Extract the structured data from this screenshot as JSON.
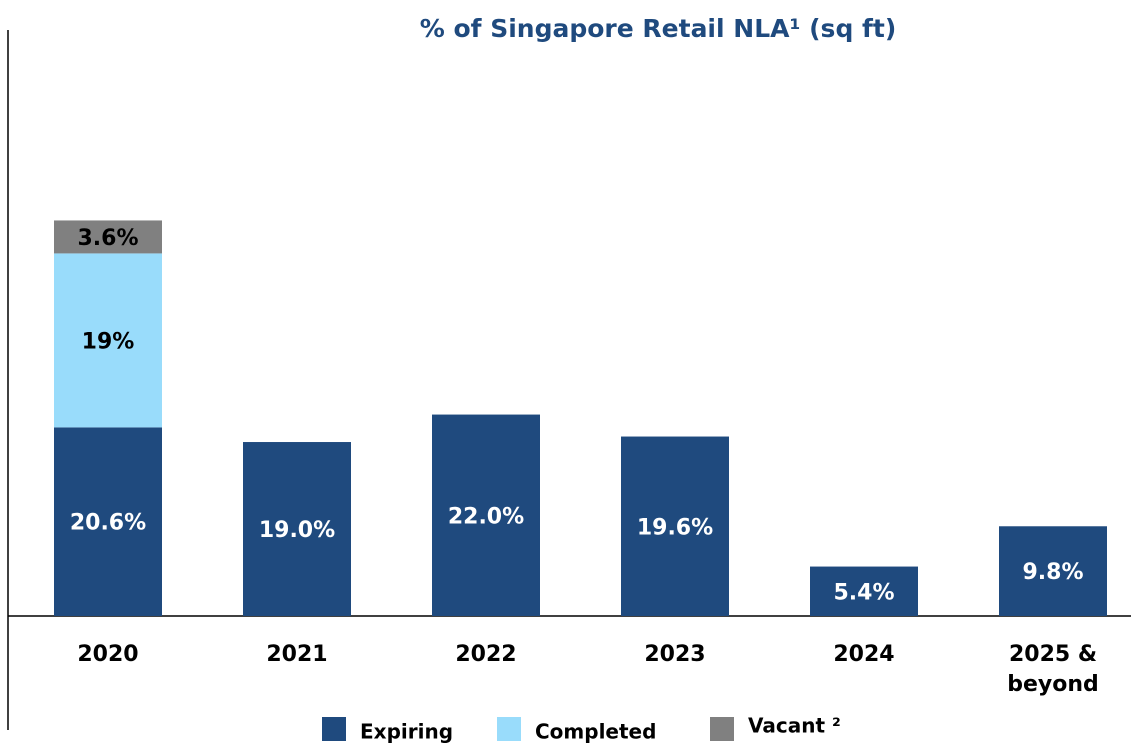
{
  "chart_data": {
    "type": "stacked_bar",
    "title": "% of Singapore Retail NLA¹ (sq ft)",
    "categories": [
      "2020",
      "2021",
      "2022",
      "2023",
      "2024",
      "2025 & beyond"
    ],
    "series": [
      {
        "name": "Expiring",
        "color": "#1f4a7e",
        "values": [
          20.6,
          19.0,
          22.0,
          19.6,
          5.4,
          9.8
        ],
        "value_labels": [
          "20.6%",
          "19.0%",
          "22.0%",
          "19.6%",
          "5.4%",
          "9.8%"
        ]
      },
      {
        "name": "Completed",
        "color": "#99dcfb",
        "values": [
          19,
          null,
          null,
          null,
          null,
          null
        ],
        "value_labels": [
          "19%",
          null,
          null,
          null,
          null,
          null
        ]
      },
      {
        "name": "Vacant ²",
        "color": "#808080",
        "values": [
          3.6,
          null,
          null,
          null,
          null,
          null
        ],
        "value_labels": [
          "3.6%",
          null,
          null,
          null,
          null,
          null
        ]
      }
    ],
    "ylim": [
      0,
      64
    ]
  }
}
